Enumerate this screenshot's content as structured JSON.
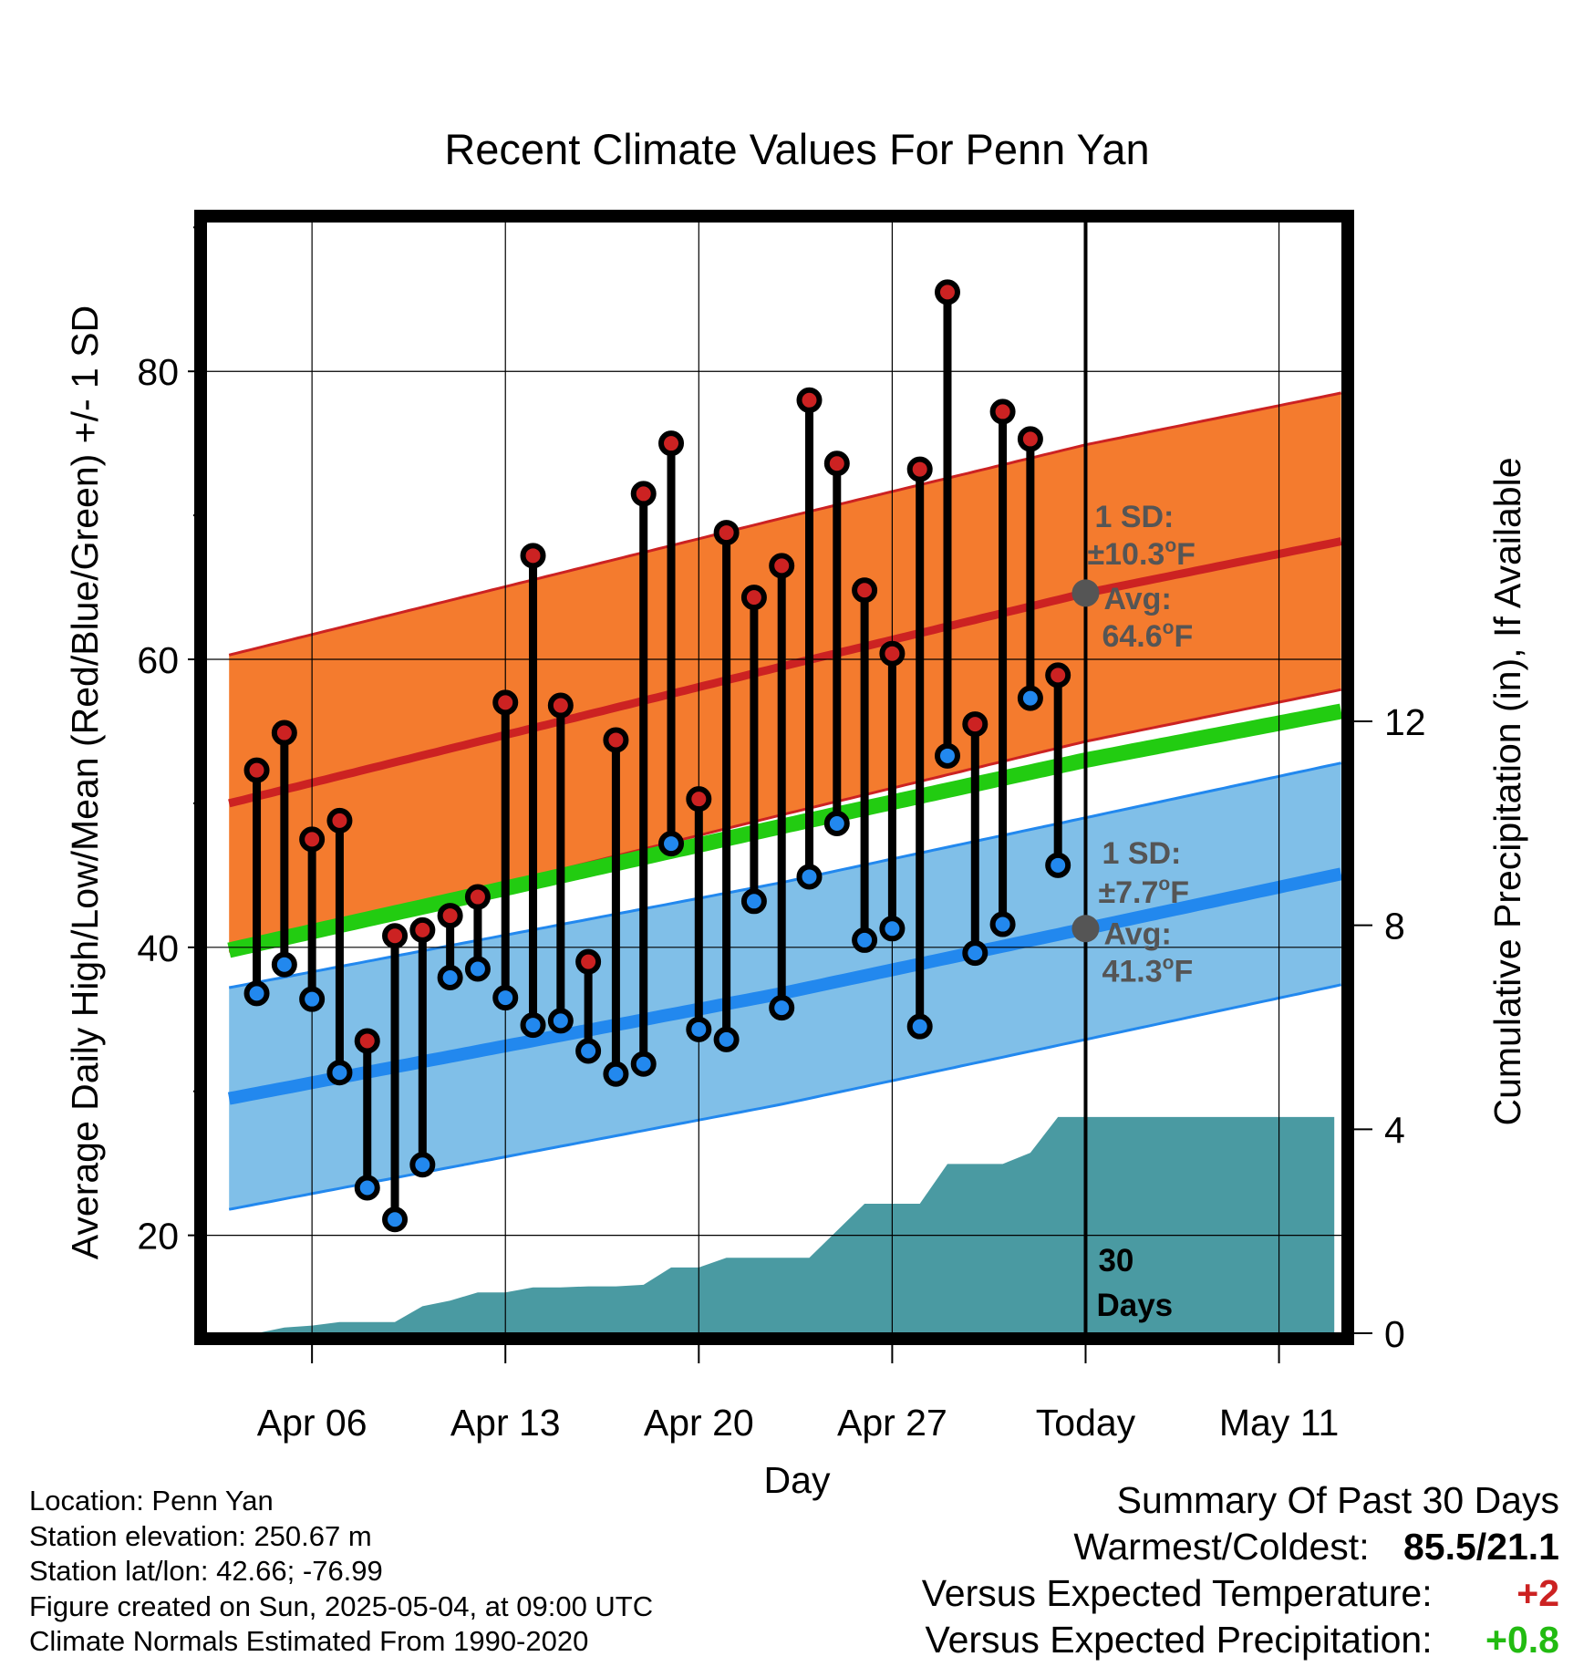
{
  "chart_data": {
    "type": "line",
    "title": "Recent Climate Values For Penn Yan",
    "xlabel": "Day",
    "ylabel": "Average Daily High/Low/Mean (Red/Blue/Green) +/- 1 SD",
    "y2label": "Cumulative Precipitation (in), If Available",
    "x_ticks": [
      {
        "date": "2025-04-06",
        "label": "Apr 06"
      },
      {
        "date": "2025-04-13",
        "label": "Apr 13"
      },
      {
        "date": "2025-04-20",
        "label": "Apr 20"
      },
      {
        "date": "2025-04-27",
        "label": "Apr 27"
      },
      {
        "date": "2025-05-04",
        "label": "Today"
      },
      {
        "date": "2025-05-11",
        "label": "May 11"
      }
    ],
    "xlim": [
      "2025-04-02T16:00",
      "2025-05-13T19:00"
    ],
    "ylim": [
      13.2,
      90.4
    ],
    "y_ticks": [
      20,
      40,
      60,
      80
    ],
    "y_minor_ticks": [
      30,
      50,
      70,
      90
    ],
    "y2lim": [
      0,
      21.8
    ],
    "y2_ticks": [
      0,
      4,
      8,
      12
    ],
    "today": "2025-05-04",
    "grid": true,
    "normals": {
      "high_mean": [
        {
          "x": "2025-04-03",
          "y": 50.0
        },
        {
          "x": "2025-04-23",
          "y": 59.5
        },
        {
          "x": "2025-05-04",
          "y": 64.6
        },
        {
          "x": "2025-05-13",
          "y": 68.1
        }
      ],
      "high_sd": 10.3,
      "mean_mean": [
        {
          "x": "2025-04-03",
          "y": 39.8
        },
        {
          "x": "2025-04-23",
          "y": 48.4
        },
        {
          "x": "2025-05-04",
          "y": 53.0
        },
        {
          "x": "2025-05-13",
          "y": 56.3
        }
      ],
      "low_mean": [
        {
          "x": "2025-04-03",
          "y": 29.5
        },
        {
          "x": "2025-04-23",
          "y": 36.8
        },
        {
          "x": "2025-05-04",
          "y": 41.3
        },
        {
          "x": "2025-05-13",
          "y": 45.0
        }
      ],
      "low_sd": 7.7
    },
    "series": [
      {
        "name": "High",
        "color": "#cc2222",
        "data": [
          {
            "x": "2025-04-04",
            "y": 52.3
          },
          {
            "x": "2025-04-05",
            "y": 54.9
          },
          {
            "x": "2025-04-06",
            "y": 47.5
          },
          {
            "x": "2025-04-07",
            "y": 48.8
          },
          {
            "x": "2025-04-08",
            "y": 33.5
          },
          {
            "x": "2025-04-09",
            "y": 40.8
          },
          {
            "x": "2025-04-10",
            "y": 41.2
          },
          {
            "x": "2025-04-11",
            "y": 42.2
          },
          {
            "x": "2025-04-12",
            "y": 43.5
          },
          {
            "x": "2025-04-13",
            "y": 57.0
          },
          {
            "x": "2025-04-14",
            "y": 67.2
          },
          {
            "x": "2025-04-15",
            "y": 56.8
          },
          {
            "x": "2025-04-16",
            "y": 39.0
          },
          {
            "x": "2025-04-17",
            "y": 54.4
          },
          {
            "x": "2025-04-18",
            "y": 71.5
          },
          {
            "x": "2025-04-19",
            "y": 75.0
          },
          {
            "x": "2025-04-20",
            "y": 50.3
          },
          {
            "x": "2025-04-21",
            "y": 68.8
          },
          {
            "x": "2025-04-22",
            "y": 64.3
          },
          {
            "x": "2025-04-23",
            "y": 66.5
          },
          {
            "x": "2025-04-24",
            "y": 78.0
          },
          {
            "x": "2025-04-25",
            "y": 73.6
          },
          {
            "x": "2025-04-26",
            "y": 64.8
          },
          {
            "x": "2025-04-27",
            "y": 60.4
          },
          {
            "x": "2025-04-28",
            "y": 73.2
          },
          {
            "x": "2025-04-29",
            "y": 85.5
          },
          {
            "x": "2025-04-30",
            "y": 55.5
          },
          {
            "x": "2025-05-01",
            "y": 77.2
          },
          {
            "x": "2025-05-02",
            "y": 75.3
          },
          {
            "x": "2025-05-03",
            "y": 58.9
          }
        ]
      },
      {
        "name": "Low",
        "color": "#2288ee",
        "data": [
          {
            "x": "2025-04-04",
            "y": 36.8
          },
          {
            "x": "2025-04-05",
            "y": 38.8
          },
          {
            "x": "2025-04-06",
            "y": 36.4
          },
          {
            "x": "2025-04-07",
            "y": 31.3
          },
          {
            "x": "2025-04-08",
            "y": 23.3
          },
          {
            "x": "2025-04-09",
            "y": 21.1
          },
          {
            "x": "2025-04-10",
            "y": 24.9
          },
          {
            "x": "2025-04-11",
            "y": 37.9
          },
          {
            "x": "2025-04-12",
            "y": 38.5
          },
          {
            "x": "2025-04-13",
            "y": 36.5
          },
          {
            "x": "2025-04-14",
            "y": 34.6
          },
          {
            "x": "2025-04-15",
            "y": 34.9
          },
          {
            "x": "2025-04-16",
            "y": 32.8
          },
          {
            "x": "2025-04-17",
            "y": 31.2
          },
          {
            "x": "2025-04-18",
            "y": 31.9
          },
          {
            "x": "2025-04-19",
            "y": 47.2
          },
          {
            "x": "2025-04-20",
            "y": 34.3
          },
          {
            "x": "2025-04-21",
            "y": 33.6
          },
          {
            "x": "2025-04-22",
            "y": 43.2
          },
          {
            "x": "2025-04-23",
            "y": 35.8
          },
          {
            "x": "2025-04-24",
            "y": 44.9
          },
          {
            "x": "2025-04-25",
            "y": 48.6
          },
          {
            "x": "2025-04-26",
            "y": 40.5
          },
          {
            "x": "2025-04-27",
            "y": 41.3
          },
          {
            "x": "2025-04-28",
            "y": 34.5
          },
          {
            "x": "2025-04-29",
            "y": 53.3
          },
          {
            "x": "2025-04-30",
            "y": 39.6
          },
          {
            "x": "2025-05-01",
            "y": 41.6
          },
          {
            "x": "2025-05-02",
            "y": 57.3
          },
          {
            "x": "2025-05-03",
            "y": 45.7
          }
        ]
      }
    ],
    "precip": [
      {
        "x": "2025-04-04",
        "y": 0.0
      },
      {
        "x": "2025-04-05",
        "y": 0.11
      },
      {
        "x": "2025-04-06",
        "y": 0.15
      },
      {
        "x": "2025-04-07",
        "y": 0.22
      },
      {
        "x": "2025-04-08",
        "y": 0.22
      },
      {
        "x": "2025-04-09",
        "y": 0.22
      },
      {
        "x": "2025-04-10",
        "y": 0.53
      },
      {
        "x": "2025-04-11",
        "y": 0.64
      },
      {
        "x": "2025-04-12",
        "y": 0.8
      },
      {
        "x": "2025-04-13",
        "y": 0.8
      },
      {
        "x": "2025-04-14",
        "y": 0.9
      },
      {
        "x": "2025-04-15",
        "y": 0.9
      },
      {
        "x": "2025-04-16",
        "y": 0.92
      },
      {
        "x": "2025-04-17",
        "y": 0.92
      },
      {
        "x": "2025-04-18",
        "y": 0.95
      },
      {
        "x": "2025-04-19",
        "y": 1.29
      },
      {
        "x": "2025-04-20",
        "y": 1.29
      },
      {
        "x": "2025-04-21",
        "y": 1.48
      },
      {
        "x": "2025-04-22",
        "y": 1.48
      },
      {
        "x": "2025-04-23",
        "y": 1.48
      },
      {
        "x": "2025-04-24",
        "y": 1.48
      },
      {
        "x": "2025-04-25",
        "y": 2.01
      },
      {
        "x": "2025-04-26",
        "y": 2.54
      },
      {
        "x": "2025-04-27",
        "y": 2.54
      },
      {
        "x": "2025-04-28",
        "y": 2.54
      },
      {
        "x": "2025-04-29",
        "y": 3.32
      },
      {
        "x": "2025-04-30",
        "y": 3.32
      },
      {
        "x": "2025-05-01",
        "y": 3.32
      },
      {
        "x": "2025-05-02",
        "y": 3.54
      },
      {
        "x": "2025-05-03",
        "y": 4.24
      },
      {
        "x": "2025-05-04",
        "y": 4.24
      },
      {
        "x": "2025-05-13",
        "y": 4.24
      }
    ],
    "annotations": {
      "high_sd_label": "1 SD:",
      "high_sd_value": "±10.3",
      "high_avg_label": "Avg:",
      "high_avg_value": "64.6",
      "low_sd_label": "1 SD:",
      "low_sd_value": "±7.7",
      "low_avg_label": "Avg:",
      "low_avg_value": "41.3",
      "degree_unit_sup": "o",
      "degree_unit_letter": "F",
      "days_number": "30",
      "days_word": "Days"
    },
    "colors": {
      "high_band": "#f47b2e",
      "high_line": "#cc2222",
      "mean_line": "#22cc11",
      "low_band": "#80bfe8",
      "low_line": "#2288ee",
      "precip_fill": "#4a9aa2",
      "avg_marker": "#555555",
      "annotation_text": "#555555"
    }
  },
  "footer": {
    "lines": [
      "Location: Penn Yan",
      "Station elevation: 250.67 m",
      "Station lat/lon: 42.66; -76.99",
      "Figure created on Sun, 2025-05-04, at 09:00 UTC",
      "Climate Normals Estimated From 1990-2020"
    ]
  },
  "summary": {
    "title": "Summary Of Past 30 Days",
    "warm_cold_label": "Warmest/Coldest:",
    "warm_cold_value": "85.5/21.1",
    "temp_label": "Versus Expected Temperature:",
    "temp_value": "+2",
    "temp_color": "#cc2222",
    "precip_label": "Versus Expected Precipitation:",
    "precip_value": "+0.8",
    "precip_color": "#22bb11"
  }
}
